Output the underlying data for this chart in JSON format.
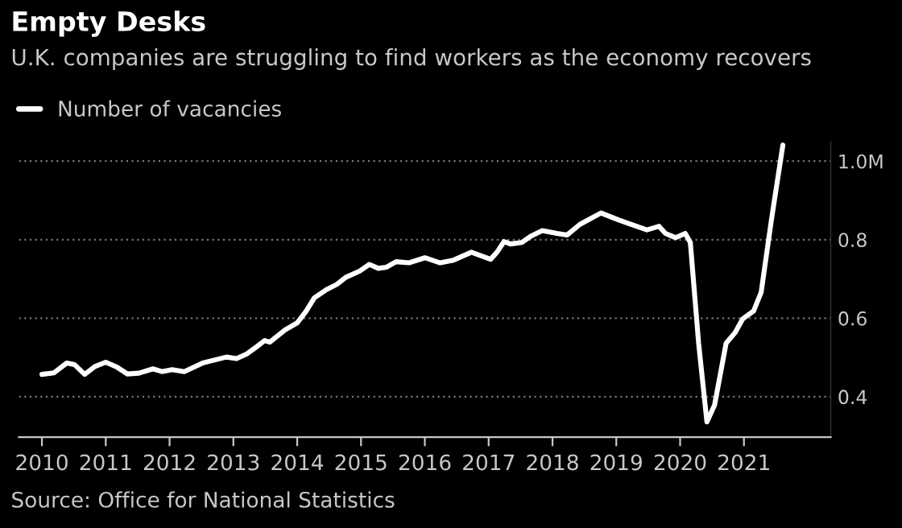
{
  "chart_data": {
    "type": "line",
    "title": "Empty Desks",
    "subtitle": "U.K. companies are struggling to find workers as the economy recovers",
    "annotations": [
      "Source: Office for National Statistics"
    ],
    "series": [
      {
        "name": "Number of vacancies",
        "color": "#ffffff",
        "x": [
          2010.0,
          2010.19,
          2010.39,
          2010.51,
          2010.67,
          2010.83,
          2011.0,
          2011.18,
          2011.34,
          2011.52,
          2011.74,
          2011.88,
          2012.04,
          2012.23,
          2012.52,
          2012.89,
          2013.05,
          2013.21,
          2013.37,
          2013.49,
          2013.57,
          2013.81,
          2014.0,
          2014.14,
          2014.27,
          2014.46,
          2014.62,
          2014.76,
          2014.98,
          2015.13,
          2015.27,
          2015.4,
          2015.55,
          2015.75,
          2016.0,
          2016.24,
          2016.45,
          2016.73,
          2017.03,
          2017.13,
          2017.24,
          2017.34,
          2017.52,
          2017.66,
          2017.84,
          2018.07,
          2018.23,
          2018.43,
          2018.76,
          2019.04,
          2019.28,
          2019.48,
          2019.67,
          2019.77,
          2019.93,
          2020.08,
          2020.16,
          2020.29,
          2020.42,
          2020.54,
          2020.72,
          2020.86,
          2020.98,
          2021.15,
          2021.27,
          2021.43,
          2021.61
        ],
        "values": [
          0.457,
          0.461,
          0.486,
          0.482,
          0.457,
          0.477,
          0.488,
          0.475,
          0.458,
          0.46,
          0.471,
          0.464,
          0.469,
          0.464,
          0.486,
          0.501,
          0.497,
          0.509,
          0.528,
          0.543,
          0.539,
          0.57,
          0.588,
          0.618,
          0.652,
          0.673,
          0.686,
          0.704,
          0.72,
          0.737,
          0.727,
          0.73,
          0.744,
          0.741,
          0.754,
          0.741,
          0.748,
          0.768,
          0.75,
          0.768,
          0.795,
          0.789,
          0.793,
          0.809,
          0.823,
          0.816,
          0.812,
          0.839,
          0.868,
          0.85,
          0.836,
          0.825,
          0.834,
          0.816,
          0.805,
          0.816,
          0.793,
          0.536,
          0.336,
          0.379,
          0.536,
          0.563,
          0.598,
          0.618,
          0.666,
          0.85,
          1.041
        ]
      }
    ],
    "xlim": [
      2009.64,
      2022.36
    ],
    "xticks": [
      2010,
      2011,
      2012,
      2013,
      2014,
      2015,
      2016,
      2017,
      2018,
      2019,
      2020,
      2021
    ],
    "ylim": [
      0.297,
      1.05
    ],
    "yticks": [
      0.4,
      0.6,
      0.8,
      {
        "value": 1.0,
        "label": "1.0M"
      }
    ],
    "grid": "y",
    "legend": "top left",
    "marker": "none",
    "line_style": "solid"
  }
}
